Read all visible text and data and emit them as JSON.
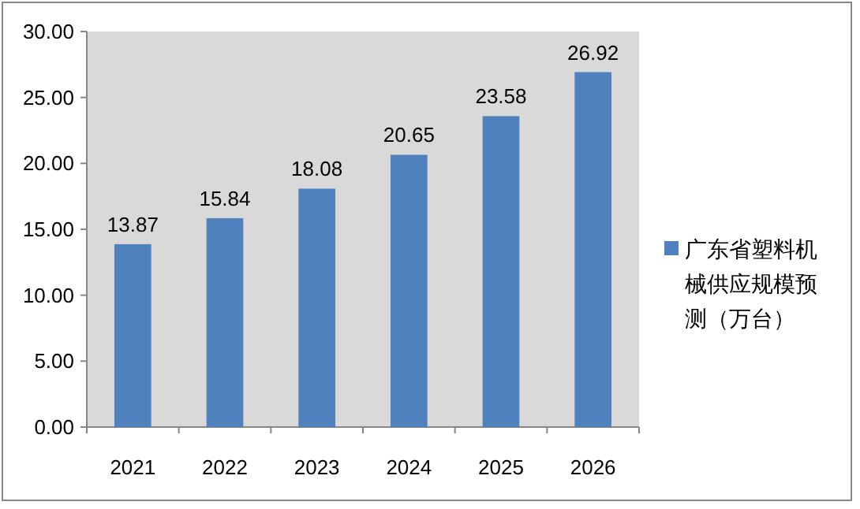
{
  "chart_data": {
    "type": "bar",
    "categories": [
      "2021",
      "2022",
      "2023",
      "2024",
      "2025",
      "2026"
    ],
    "series": [
      {
        "name": "广东省塑料机械供应规模预测（万台）",
        "color": "#4f81bd",
        "values": [
          13.87,
          15.84,
          18.08,
          20.65,
          23.58,
          26.92
        ]
      }
    ],
    "ylim": [
      0,
      30
    ],
    "yticks": [
      {
        "value": 0,
        "label": "0.00"
      },
      {
        "value": 5,
        "label": "5.00"
      },
      {
        "value": 10,
        "label": "10.00"
      },
      {
        "value": 15,
        "label": "15.00"
      },
      {
        "value": 20,
        "label": "20.00"
      },
      {
        "value": 25,
        "label": "25.00"
      },
      {
        "value": 30,
        "label": "30.00"
      }
    ],
    "data_labels": true,
    "legend": "right",
    "grid": false
  }
}
